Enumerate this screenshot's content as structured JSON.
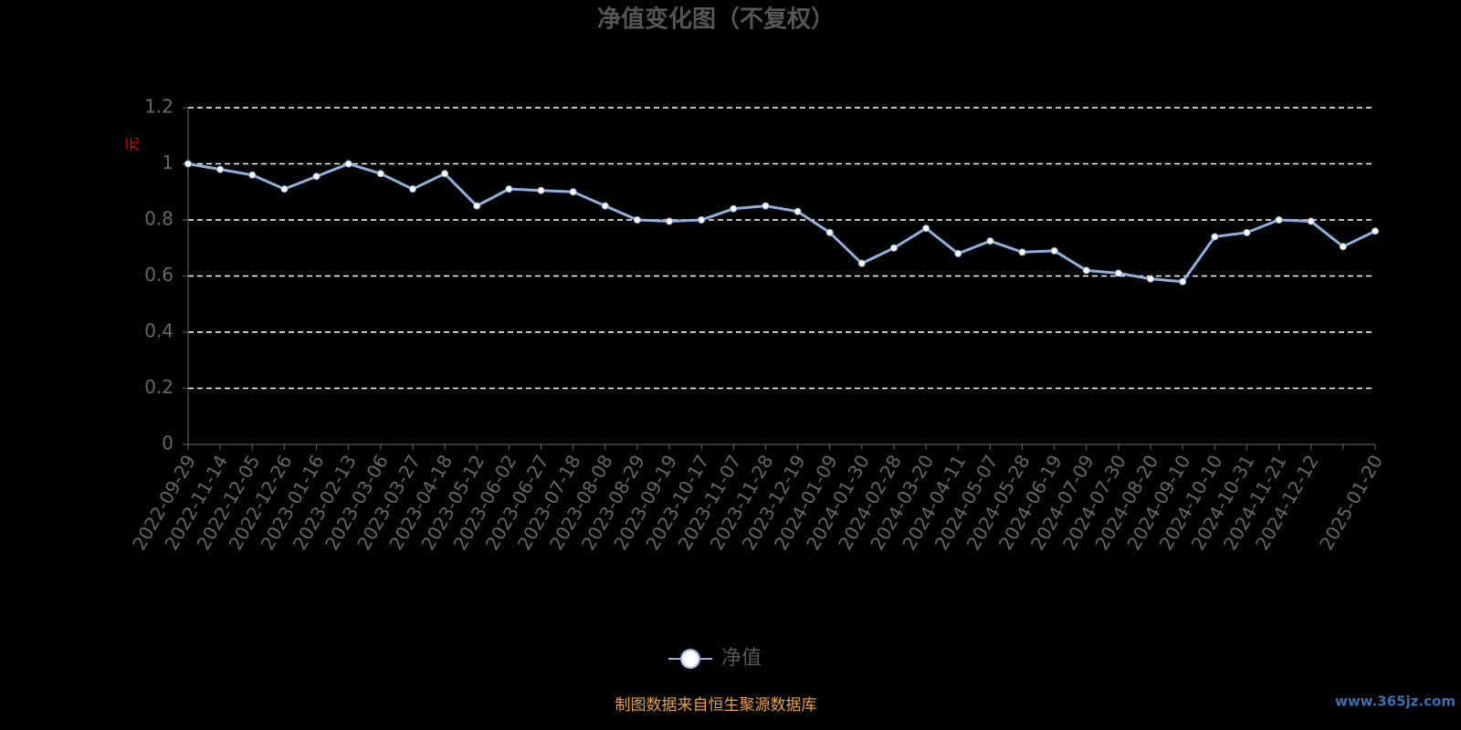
{
  "chart_data": {
    "type": "line",
    "title": "净值变化图（不复权）",
    "y_label": "元",
    "categories": [
      "2022-09-29",
      "2022-11-14",
      "2022-12-05",
      "2022-12-26",
      "2023-01-16",
      "2023-02-13",
      "2023-03-06",
      "2023-03-27",
      "2023-04-18",
      "2023-05-12",
      "2023-06-02",
      "2023-06-27",
      "2023-07-18",
      "2023-08-08",
      "2023-08-29",
      "2023-09-19",
      "2023-10-17",
      "2023-11-07",
      "2023-11-28",
      "2023-12-19",
      "2024-01-09",
      "2024-01-30",
      "2024-02-28",
      "2024-03-20",
      "2024-04-11",
      "2024-05-07",
      "2024-05-28",
      "2024-06-19",
      "2024-07-09",
      "2024-07-30",
      "2024-08-20",
      "2024-09-10",
      "2024-10-10",
      "2024-10-31",
      "2024-11-21",
      "2024-12-12",
      null,
      "2025-01-20"
    ],
    "series": [
      {
        "name": "净值",
        "color": "#8fb0dd",
        "values": [
          1.0,
          0.98,
          0.96,
          0.91,
          0.955,
          1.0,
          0.965,
          0.91,
          0.965,
          0.85,
          0.91,
          0.905,
          0.9,
          0.85,
          0.8,
          0.795,
          0.8,
          0.84,
          0.85,
          0.83,
          0.755,
          0.645,
          0.7,
          0.77,
          0.68,
          0.725,
          0.685,
          0.69,
          0.62,
          0.61,
          0.59,
          0.58,
          0.74,
          0.755,
          0.8,
          0.795,
          0.705,
          0.76
        ]
      }
    ],
    "ylim": [
      0,
      1.2
    ],
    "yticks": [
      0,
      0.2,
      0.4,
      0.6,
      0.8,
      1,
      1.2
    ],
    "grid": true,
    "source": "制图数据来自恒生聚源数据库",
    "watermark": "www.365jz.com"
  }
}
